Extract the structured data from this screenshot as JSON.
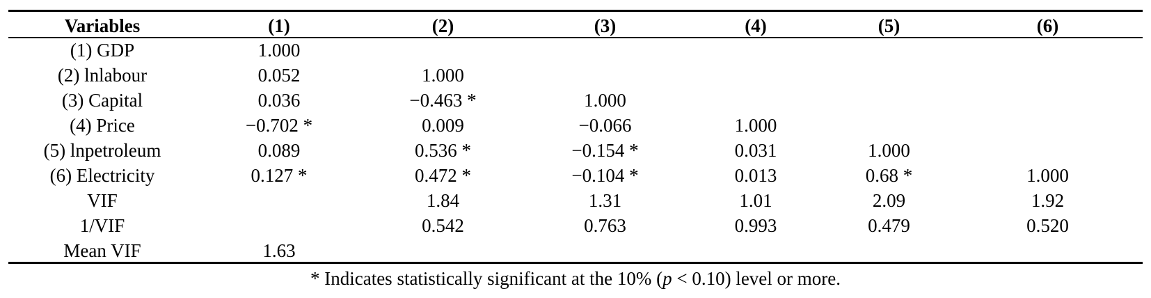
{
  "table": {
    "headers": [
      "Variables",
      "(1)",
      "(2)",
      "(3)",
      "(4)",
      "(5)",
      "(6)"
    ],
    "rows": [
      [
        "(1) GDP",
        "1.000",
        "",
        "",
        "",
        "",
        ""
      ],
      [
        "(2) lnlabour",
        "0.052",
        "1.000",
        "",
        "",
        "",
        ""
      ],
      [
        "(3) Capital",
        "0.036",
        "−0.463 *",
        "1.000",
        "",
        "",
        ""
      ],
      [
        "(4) Price",
        "−0.702 *",
        "0.009",
        "−0.066",
        "1.000",
        "",
        ""
      ],
      [
        "(5) lnpetroleum",
        "0.089",
        "0.536 *",
        "−0.154 *",
        "0.031",
        "1.000",
        ""
      ],
      [
        "(6) Electricity",
        "0.127 *",
        "0.472 *",
        "−0.104 *",
        "0.013",
        "0.68 *",
        "1.000"
      ],
      [
        "VIF",
        "",
        "1.84",
        "1.31",
        "1.01",
        "2.09",
        "1.92"
      ],
      [
        "1/VIF",
        "",
        "0.542",
        "0.763",
        "0.993",
        "0.479",
        "0.520"
      ],
      [
        "Mean VIF",
        "1.63",
        "",
        "",
        "",
        "",
        ""
      ]
    ]
  },
  "footnote": {
    "before": "* Indicates statistically significant at the 10% (",
    "italic": "p",
    "after": " < 0.10) level or more."
  }
}
